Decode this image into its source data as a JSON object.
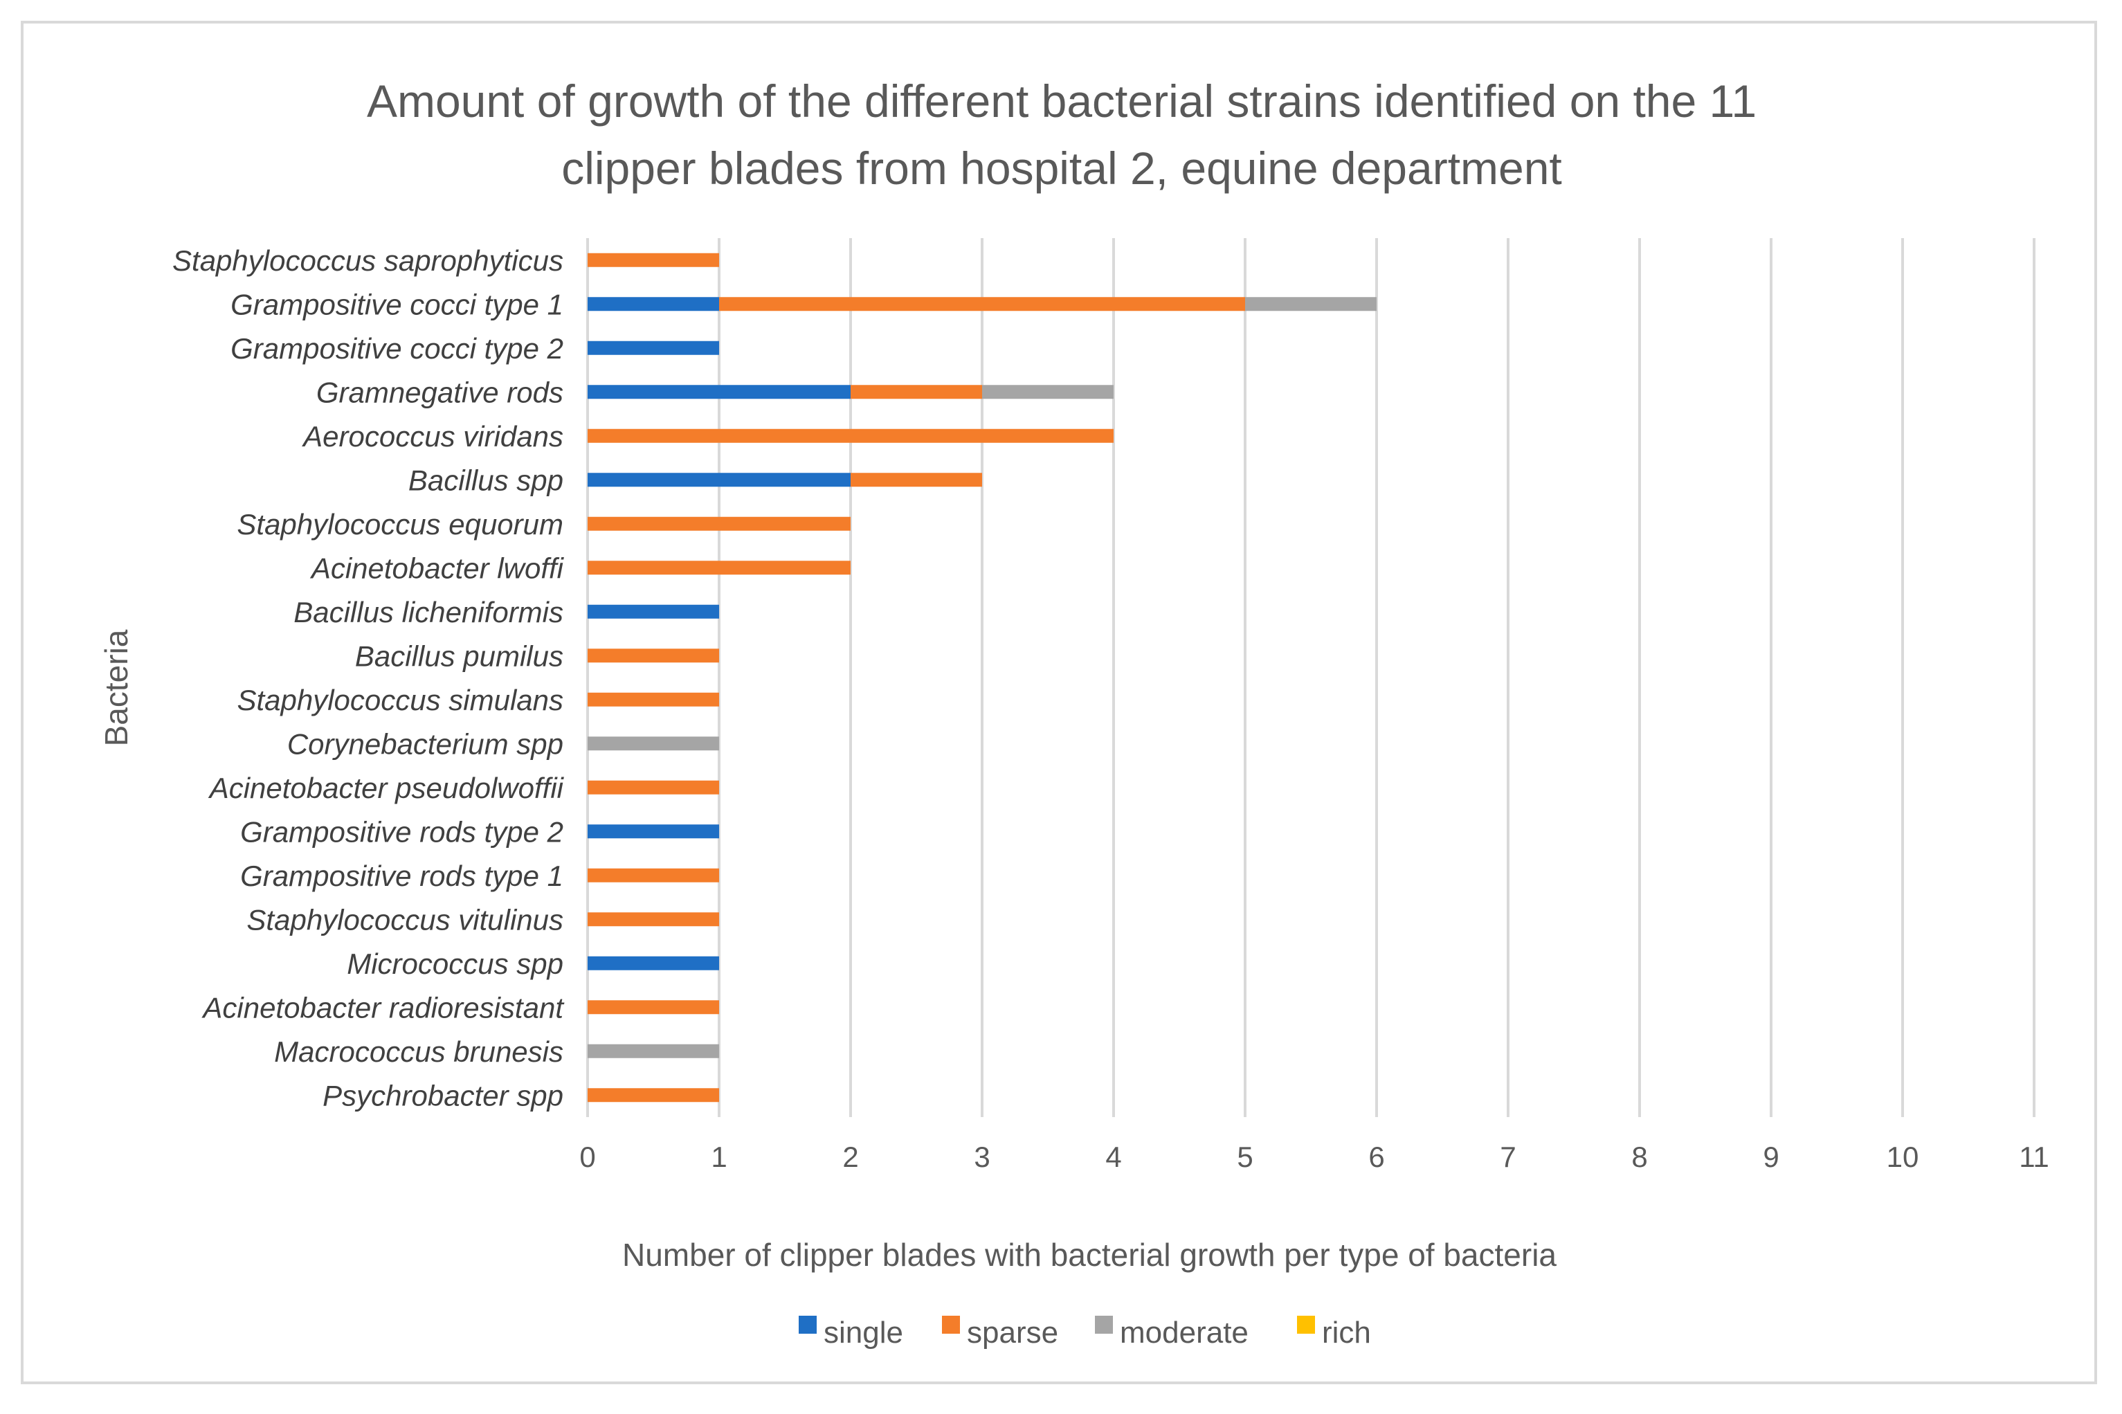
{
  "chart_data": {
    "type": "bar",
    "orientation": "horizontal",
    "stacked": true,
    "title": "Amount of growth of the different bacterial strains identified on the 11 clipper blades from hospital 2, equine department",
    "title_lines": [
      "Amount of growth of the different bacterial strains identified on the 11",
      "clipper blades from hospital 2, equine department"
    ],
    "xlabel": "Number of clipper blades with bacterial growth per type of bacteria",
    "ylabel": "Bacteria",
    "xlim": [
      0,
      11
    ],
    "xticks": [
      "0",
      "1",
      "2",
      "3",
      "4",
      "5",
      "6",
      "7",
      "8",
      "9",
      "10",
      "11"
    ],
    "grid": "vertical",
    "legend_position": "bottom",
    "categories": [
      "Staphylococcus saprophyticus",
      "Grampositive cocci type 1",
      "Grampositive cocci type 2",
      "Gramnegative rods",
      "Aerococcus viridans",
      "Bacillus spp",
      "Staphylococcus equorum",
      "Acinetobacter lwoffi",
      "Bacillus licheniformis",
      "Bacillus pumilus",
      "Staphylococcus simulans",
      "Corynebacterium spp",
      "Acinetobacter pseudolwoffii",
      "Grampositive rods type 2",
      "Grampositive rods type 1",
      "Staphylococcus vitulinus",
      "Micrococcus spp",
      "Acinetobacter radioresistant",
      "Macrococcus brunesis",
      "Psychrobacter spp"
    ],
    "series": [
      {
        "name": "single",
        "color": "#1f6fc5",
        "values": [
          0,
          1,
          1,
          2,
          0,
          2,
          0,
          0,
          1,
          0,
          0,
          0,
          0,
          1,
          0,
          0,
          1,
          0,
          0,
          0
        ]
      },
      {
        "name": "sparse",
        "color": "#f47d2a",
        "values": [
          1,
          4,
          0,
          1,
          4,
          1,
          2,
          2,
          0,
          1,
          1,
          0,
          1,
          0,
          1,
          1,
          0,
          1,
          0,
          1
        ]
      },
      {
        "name": "moderate",
        "color": "#a5a5a5",
        "values": [
          0,
          1,
          0,
          1,
          0,
          0,
          0,
          0,
          0,
          0,
          0,
          1,
          0,
          0,
          0,
          0,
          0,
          0,
          1,
          0
        ]
      },
      {
        "name": "rich",
        "color": "#ffc000",
        "values": [
          0,
          0,
          0,
          0,
          0,
          0,
          0,
          0,
          0,
          0,
          0,
          0,
          0,
          0,
          0,
          0,
          0,
          0,
          0,
          0
        ]
      }
    ]
  }
}
